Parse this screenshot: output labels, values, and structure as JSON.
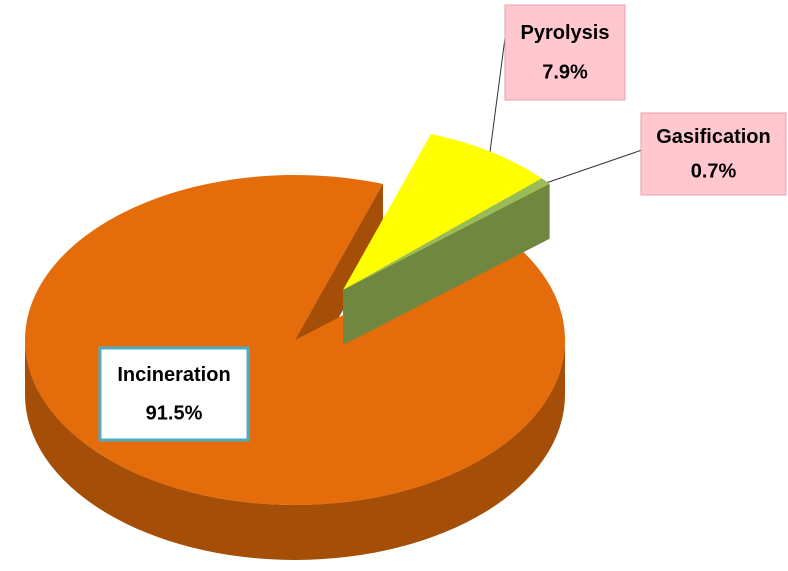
{
  "chart_data": {
    "type": "pie",
    "categories": [
      "Pyrolysis",
      "Gasification",
      "Incineration"
    ],
    "values": [
      7.9,
      0.7,
      91.5
    ],
    "value_labels": [
      "7.9%",
      "0.7%",
      "91.5%"
    ],
    "colors": [
      "#ffff00",
      "#9bbb59",
      "#e46c0a"
    ]
  }
}
